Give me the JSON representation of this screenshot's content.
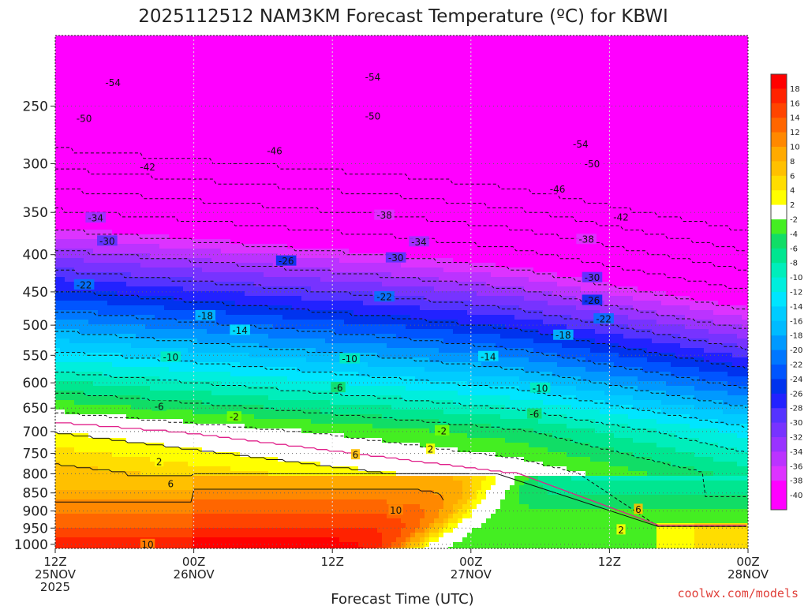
{
  "chart_data": {
    "type": "heatmap",
    "title": "2025112512 NAM3KM Forecast Temperature (ºC) for KBWI",
    "xlabel": "Forecast Time (UTC)",
    "ylabel": "",
    "credit": "coolwx.com/models",
    "x_ticks": [
      {
        "hour": 0,
        "lines": [
          "12Z",
          "25NOV",
          "2025"
        ]
      },
      {
        "hour": 12,
        "lines": [
          "00Z",
          "26NOV"
        ]
      },
      {
        "hour": 24,
        "lines": [
          "12Z"
        ]
      },
      {
        "hour": 36,
        "lines": [
          "00Z",
          "27NOV"
        ]
      },
      {
        "hour": 48,
        "lines": [
          "12Z"
        ]
      },
      {
        "hour": 60,
        "lines": [
          "00Z",
          "28NOV"
        ]
      }
    ],
    "xlim": [
      0,
      60
    ],
    "y_ticks": [
      250,
      300,
      350,
      400,
      450,
      500,
      550,
      600,
      650,
      700,
      750,
      800,
      850,
      900,
      950,
      1000
    ],
    "ylim_hpa": [
      200,
      1013
    ],
    "surface_hpa": 1013,
    "colorbar": {
      "levels": [
        -40,
        -38,
        -36,
        -34,
        -32,
        -30,
        -28,
        -26,
        -24,
        -22,
        -20,
        -18,
        -16,
        -14,
        -12,
        -10,
        -8,
        -6,
        -4,
        -2,
        2,
        4,
        6,
        8,
        10,
        12,
        14,
        16,
        18
      ],
      "labels": [
        "18",
        "16",
        "14",
        "12",
        "10",
        "8",
        "6",
        "4",
        "2",
        "-2",
        "-4",
        "-6",
        "-8",
        "-10",
        "-12",
        "-14",
        "-16",
        "-18",
        "-20",
        "-22",
        "-24",
        "-26",
        "-28",
        "-30",
        "-32",
        "-34",
        "-36",
        "-38",
        "-40"
      ]
    },
    "ground_color": "#a0522d",
    "freezing_line_color": "#e0208a",
    "contour_labels": [
      {
        "t": -54,
        "hour": 5,
        "hpa": 232
      },
      {
        "t": -54,
        "hour": 27.5,
        "hpa": 228
      },
      {
        "t": -54,
        "hour": 45.5,
        "hpa": 282
      },
      {
        "t": -50,
        "hour": 2.5,
        "hpa": 260
      },
      {
        "t": -50,
        "hour": 27.5,
        "hpa": 258
      },
      {
        "t": -50,
        "hour": 46.5,
        "hpa": 300
      },
      {
        "t": -46,
        "hour": 19,
        "hpa": 288
      },
      {
        "t": -46,
        "hour": 43.5,
        "hpa": 325
      },
      {
        "t": -42,
        "hour": 8,
        "hpa": 303
      },
      {
        "t": -42,
        "hour": 49,
        "hpa": 355
      },
      {
        "t": -38,
        "hour": 28.5,
        "hpa": 353
      },
      {
        "t": -38,
        "hour": 46,
        "hpa": 381
      },
      {
        "t": -34,
        "hour": 3.5,
        "hpa": 356
      },
      {
        "t": -34,
        "hour": 31.5,
        "hpa": 384
      },
      {
        "t": -30,
        "hour": 4.5,
        "hpa": 383
      },
      {
        "t": -30,
        "hour": 29.5,
        "hpa": 404
      },
      {
        "t": -30,
        "hour": 46.5,
        "hpa": 430
      },
      {
        "t": -26,
        "hour": 20,
        "hpa": 408
      },
      {
        "t": -26,
        "hour": 46.5,
        "hpa": 462
      },
      {
        "t": -22,
        "hour": 2.5,
        "hpa": 440
      },
      {
        "t": -22,
        "hour": 28.5,
        "hpa": 457
      },
      {
        "t": -22,
        "hour": 47.5,
        "hpa": 490
      },
      {
        "t": -18,
        "hour": 13,
        "hpa": 485
      },
      {
        "t": -18,
        "hour": 44,
        "hpa": 516
      },
      {
        "t": -14,
        "hour": 16,
        "hpa": 508
      },
      {
        "t": -14,
        "hour": 37.5,
        "hpa": 552
      },
      {
        "t": -10,
        "hour": 10,
        "hpa": 553
      },
      {
        "t": -10,
        "hour": 25.5,
        "hpa": 556
      },
      {
        "t": -10,
        "hour": 42,
        "hpa": 610
      },
      {
        "t": -6,
        "hour": 9,
        "hpa": 646
      },
      {
        "t": -6,
        "hour": 24.5,
        "hpa": 609
      },
      {
        "t": -6,
        "hour": 41.5,
        "hpa": 662
      },
      {
        "t": -2,
        "hour": 15.5,
        "hpa": 668
      },
      {
        "t": -2,
        "hour": 33.5,
        "hpa": 698
      },
      {
        "t": 2,
        "hour": 9,
        "hpa": 770
      },
      {
        "t": 2,
        "hour": 32.5,
        "hpa": 740
      },
      {
        "t": 2,
        "hour": 49,
        "hpa": 955
      },
      {
        "t": 6,
        "hour": 10,
        "hpa": 825
      },
      {
        "t": 6,
        "hour": 26,
        "hpa": 753
      },
      {
        "t": 6,
        "hour": 50.5,
        "hpa": 895
      },
      {
        "t": 10,
        "hour": 8,
        "hpa": 1000
      },
      {
        "t": 10,
        "hour": 29.5,
        "hpa": 897
      }
    ]
  }
}
